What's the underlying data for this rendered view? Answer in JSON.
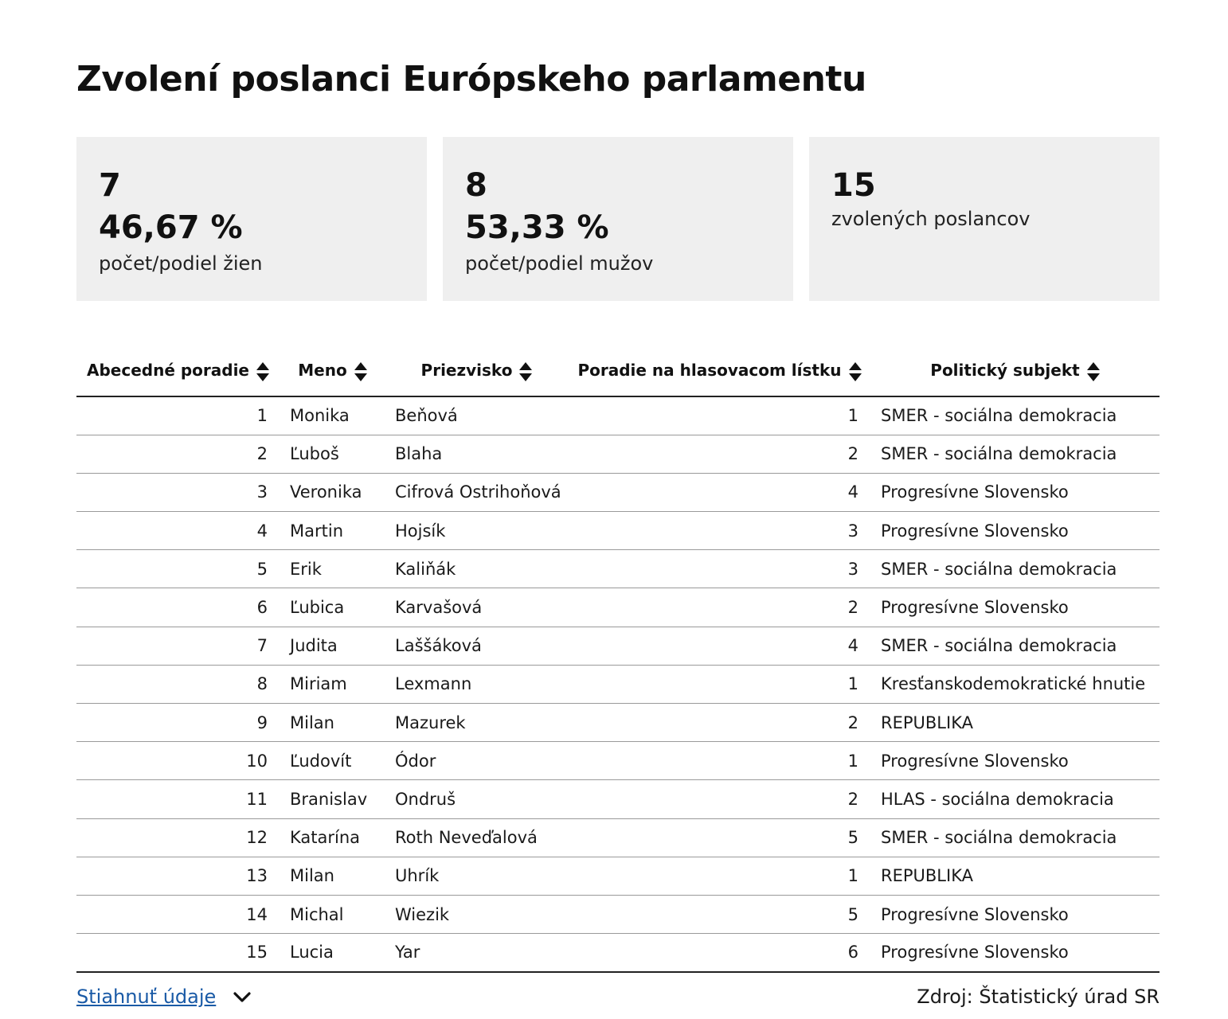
{
  "title": "Zvolení poslanci Európskeho parlamentu",
  "stats": [
    {
      "count": "7",
      "percent": "46,67 %",
      "label": "počet/podiel žien"
    },
    {
      "count": "8",
      "percent": "53,33 %",
      "label": "počet/podiel mužov"
    },
    {
      "count": "15",
      "percent": "",
      "label": "zvolených poslancov"
    }
  ],
  "table": {
    "headers": [
      "Abecedné poradie",
      "Meno",
      "Priezvisko",
      "Poradie na hlasovacom lístku",
      "Politický subjekt"
    ],
    "sort_icon": "sort-updown-icon",
    "rows": [
      {
        "order": "1",
        "first": "Monika",
        "last": "Beňová",
        "ballot": "1",
        "party": "SMER - sociálna demokracia"
      },
      {
        "order": "2",
        "first": "Ľuboš",
        "last": "Blaha",
        "ballot": "2",
        "party": "SMER - sociálna demokracia"
      },
      {
        "order": "3",
        "first": "Veronika",
        "last": "Cifrová Ostrihoňová",
        "ballot": "4",
        "party": "Progresívne Slovensko"
      },
      {
        "order": "4",
        "first": "Martin",
        "last": "Hojsík",
        "ballot": "3",
        "party": "Progresívne Slovensko"
      },
      {
        "order": "5",
        "first": "Erik",
        "last": "Kaliňák",
        "ballot": "3",
        "party": "SMER - sociálna demokracia"
      },
      {
        "order": "6",
        "first": "Ľubica",
        "last": "Karvašová",
        "ballot": "2",
        "party": "Progresívne Slovensko"
      },
      {
        "order": "7",
        "first": "Judita",
        "last": "Laššáková",
        "ballot": "4",
        "party": "SMER - sociálna demokracia"
      },
      {
        "order": "8",
        "first": "Miriam",
        "last": "Lexmann",
        "ballot": "1",
        "party": "Kresťanskodemokratické hnutie"
      },
      {
        "order": "9",
        "first": "Milan",
        "last": "Mazurek",
        "ballot": "2",
        "party": "REPUBLIKA"
      },
      {
        "order": "10",
        "first": "Ľudovít",
        "last": "Ódor",
        "ballot": "1",
        "party": "Progresívne Slovensko"
      },
      {
        "order": "11",
        "first": "Branislav",
        "last": "Ondruš",
        "ballot": "2",
        "party": "HLAS - sociálna demokracia"
      },
      {
        "order": "12",
        "first": "Katarína",
        "last": "Roth Neveďalová",
        "ballot": "5",
        "party": "SMER - sociálna demokracia"
      },
      {
        "order": "13",
        "first": "Milan",
        "last": "Uhrík",
        "ballot": "1",
        "party": "REPUBLIKA"
      },
      {
        "order": "14",
        "first": "Michal",
        "last": "Wiezik",
        "ballot": "5",
        "party": "Progresívne Slovensko"
      },
      {
        "order": "15",
        "first": "Lucia",
        "last": "Yar",
        "ballot": "6",
        "party": "Progresívne Slovensko"
      }
    ]
  },
  "footer": {
    "download_label": "Stiahnuť údaje",
    "download_icon": "chevron-down-icon",
    "source": "Zdroj: Štatistický úrad SR"
  },
  "colors": {
    "card_bg": "#efefef",
    "link": "#1a5aa6",
    "text": "#1a1a1a"
  }
}
